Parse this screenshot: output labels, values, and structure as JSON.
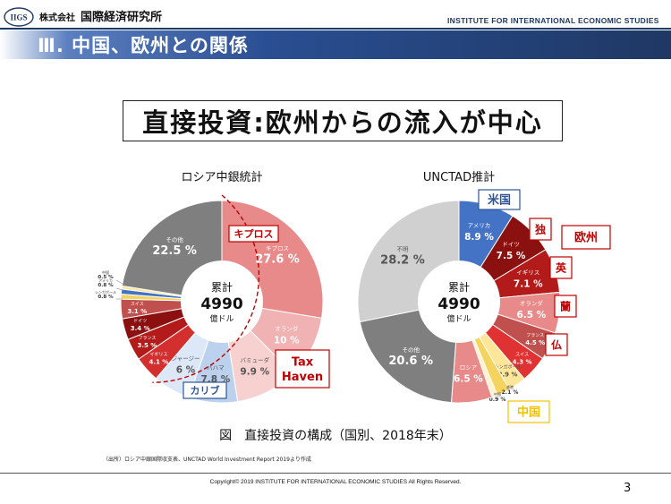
{
  "header": {
    "logo_text": "IIGS",
    "company_prefix": "株式会社",
    "company_name": "国際経済研究所",
    "english_name": "INSTITUTE FOR INTERNATIONAL ECONOMIC STUDIES"
  },
  "banner": {
    "title": "Ⅲ. 中国、欧州との関係"
  },
  "slide_title": "直接投資:欧州からの流入が中心",
  "caption": "図　直接投資の構成（国別、2018年末）",
  "source": "（出所）ロシア中銀国際収支表、UNCTAD World Investment Report 2019より作成",
  "footer": {
    "copyright": "Copyright© 2019 INSTITUTE FOR INTERNATIONAL ECONOMIC STUDIES All Rights Reserved.",
    "page": "3"
  },
  "colors": {
    "navy": "#1f3864",
    "red_label": "#c00000",
    "blue_label": "#2e5597",
    "yellow_label": "#f2c100"
  },
  "chart_data": [
    {
      "type": "pie",
      "title": "ロシア中銀統計",
      "center": {
        "label": "累計",
        "value": "4990",
        "unit": "億ドル"
      },
      "slices": [
        {
          "name": "キプロス",
          "value": 27.6,
          "color": "#e88a8a",
          "label": "キプロス",
          "pct": "27.6 %"
        },
        {
          "name": "オランダ",
          "value": 10.0,
          "color": "#f0b2b2",
          "label": "オランダ",
          "pct": "10 %"
        },
        {
          "name": "バミューダ",
          "value": 9.9,
          "color": "#f7d0d0",
          "label": "バミューダ",
          "pct": "9.9 %"
        },
        {
          "name": "バハマ",
          "value": 7.8,
          "color": "#bcd1ee",
          "label": "バハマ",
          "pct": "7.8 %"
        },
        {
          "name": "ジャージー",
          "value": 6.0,
          "color": "#dce8f8",
          "label": "ジャージー",
          "pct": "6 %"
        },
        {
          "name": "イギリス",
          "value": 4.1,
          "color": "#d42f2f",
          "label": "イギリス",
          "pct": "4.1 %"
        },
        {
          "name": "フランス",
          "value": 3.5,
          "color": "#b31b1b",
          "label": "フランス",
          "pct": "3.5 %"
        },
        {
          "name": "ドイツ",
          "value": 3.4,
          "color": "#8b1111",
          "label": "ドイツ",
          "pct": "3.4 %"
        },
        {
          "name": "スイス",
          "value": 3.1,
          "color": "#c0504d",
          "label": "スイス",
          "pct": "3.1 %"
        },
        {
          "name": "シンガポール",
          "value": 0.8,
          "color": "#f4d35e",
          "label": "シンガポール",
          "pct": "0.8 %"
        },
        {
          "name": "アメリカ",
          "value": 0.8,
          "color": "#4472c4",
          "label": "アメリカ",
          "pct": "0.8 %"
        },
        {
          "name": "中国",
          "value": 0.5,
          "color": "#ffe699",
          "label": "中国",
          "pct": "0.5 %"
        },
        {
          "name": "その他",
          "value": 22.5,
          "color": "#7f7f7f",
          "label": "その他",
          "pct": "22.5 %"
        }
      ],
      "group_labels": {
        "cyprus": "キプロス",
        "tax_haven_line1": "Tax",
        "tax_haven_line2": "Haven",
        "caribbean": "カリブ"
      }
    },
    {
      "type": "pie",
      "title": "UNCTAD推計",
      "center": {
        "label": "累計",
        "value": "4990",
        "unit": "億ドル"
      },
      "slices": [
        {
          "name": "アメリカ",
          "value": 8.9,
          "color": "#4472c4",
          "label": "アメリカ",
          "pct": "8.9 %"
        },
        {
          "name": "ドイツ",
          "value": 7.5,
          "color": "#8b1111",
          "label": "ドイツ",
          "pct": "7.5 %"
        },
        {
          "name": "イギリス",
          "value": 7.1,
          "color": "#b31b1b",
          "label": "イギリス",
          "pct": "7.1 %"
        },
        {
          "name": "オランダ",
          "value": 6.5,
          "color": "#e88a8a",
          "label": "オランダ",
          "pct": "6.5 %"
        },
        {
          "name": "フランス",
          "value": 4.5,
          "color": "#c0504d",
          "label": "フランス",
          "pct": "4.5 %"
        },
        {
          "name": "スイス",
          "value": 4.3,
          "color": "#e03232",
          "label": "スイス",
          "pct": "4.3 %"
        },
        {
          "name": "シンガポール",
          "value": 2.9,
          "color": "#ffe699",
          "label": "シンガポール",
          "pct": "2.9 %"
        },
        {
          "name": "香港",
          "value": 2.1,
          "color": "#f4d35e",
          "label": "香港",
          "pct": "2.1 %"
        },
        {
          "name": "中国",
          "value": 0.9,
          "color": "#fff2cc",
          "label": "中国",
          "pct": "0.9 %"
        },
        {
          "name": "ロシア",
          "value": 6.5,
          "color": "#e88a8a",
          "label": "ロシア",
          "pct": "6.5 %"
        },
        {
          "name": "その他",
          "value": 20.6,
          "color": "#7f7f7f",
          "label": "その他",
          "pct": "20.6 %"
        },
        {
          "name": "不明",
          "value": 28.2,
          "color": "#d0d0d0",
          "label": "不明",
          "pct": "28.2 %"
        }
      ],
      "group_labels": {
        "us": "米国",
        "de": "独",
        "europe": "欧州",
        "uk": "英",
        "nl": "蘭",
        "fr": "仏",
        "cn": "中国"
      }
    }
  ]
}
